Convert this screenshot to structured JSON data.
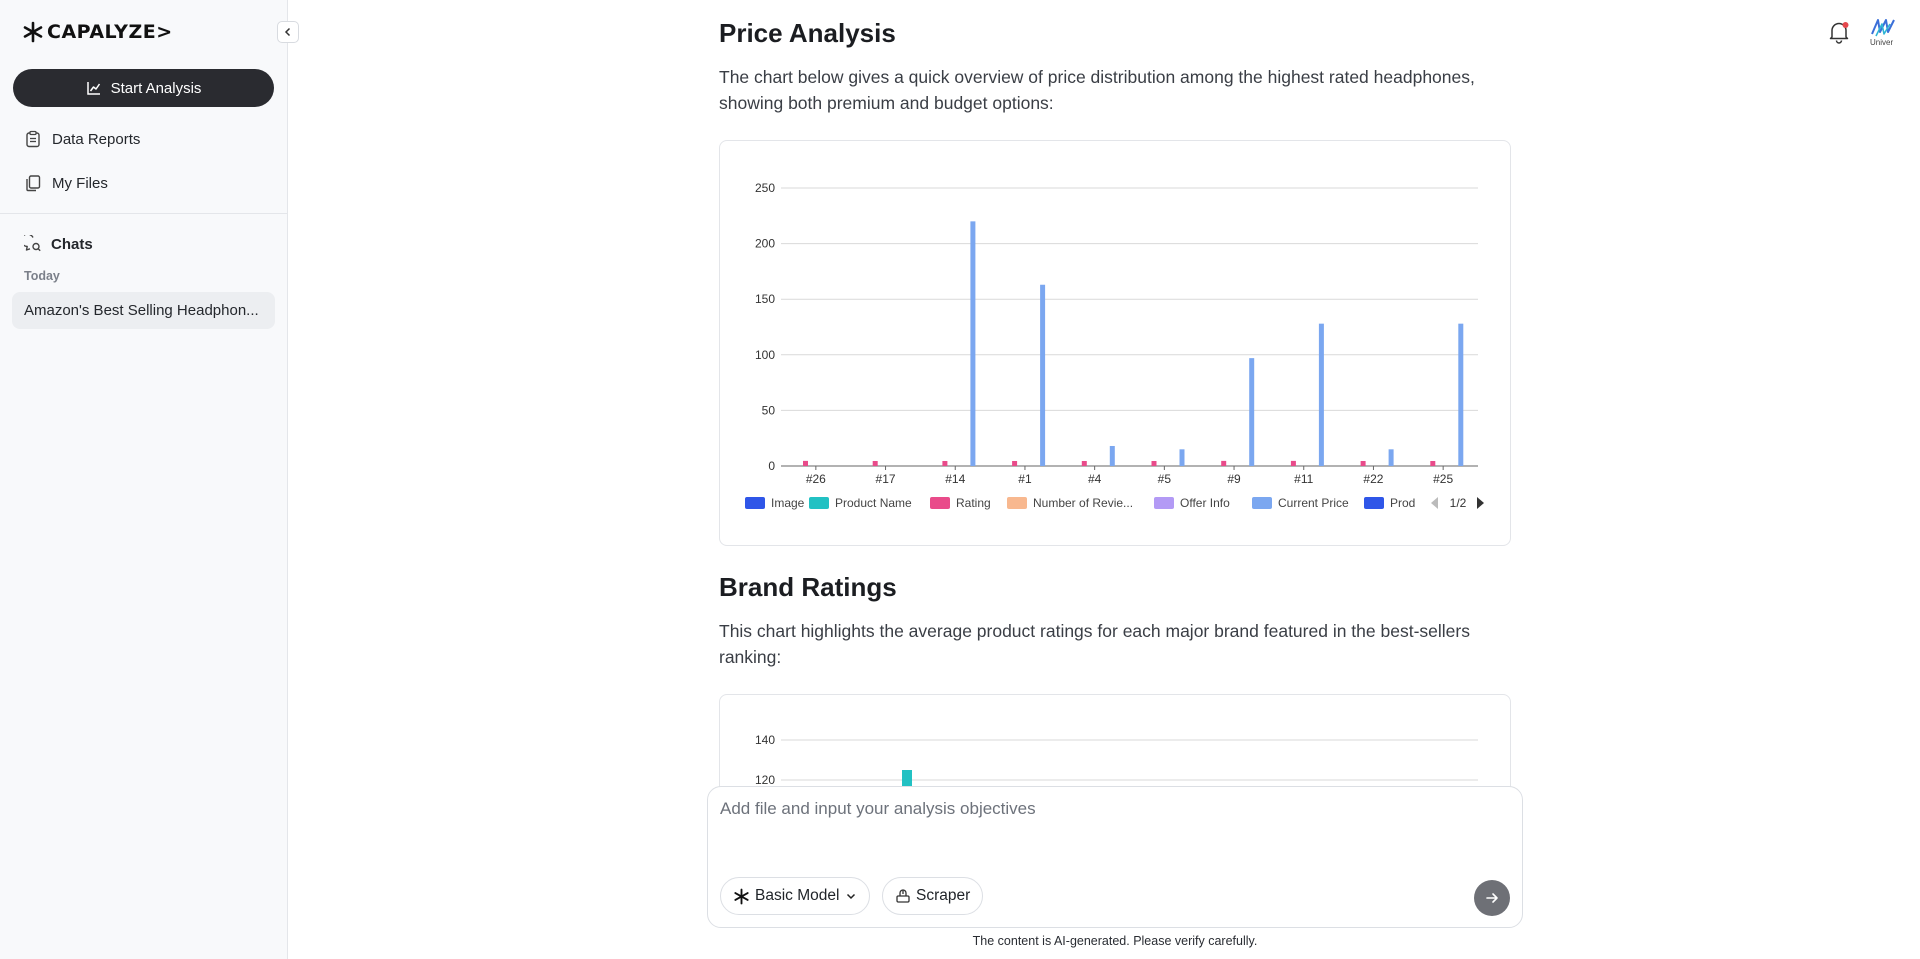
{
  "sidebar": {
    "logo_text": "CAPALYZE>",
    "start_button": "Start Analysis",
    "nav": [
      {
        "label": "Data Reports",
        "icon": "clipboard-icon"
      },
      {
        "label": "My Files",
        "icon": "files-icon"
      }
    ],
    "chats_heading": "Chats",
    "group_label": "Today",
    "chats": [
      "Amazon's Best Selling Headphon..."
    ]
  },
  "header": {
    "avatar_text": "Univer"
  },
  "main": {
    "section1": {
      "title": "Price Analysis",
      "description": "The chart below gives a quick overview of price distribution among the highest rated headphones, showing both premium and budget options:"
    },
    "section2": {
      "title": "Brand Ratings",
      "description": "This chart highlights the average product ratings for each major brand featured in the best-sellers ranking:"
    }
  },
  "composer": {
    "placeholder": "Add file and input your analysis objectives",
    "model_label": "Basic Model",
    "scraper_label": "Scraper",
    "disclaimer": "The content is AI-generated. Please verify carefully."
  },
  "colors": {
    "rating": "#e94b8a",
    "current_price": "#7ba7f0",
    "product_name": "#22c1c3",
    "accent_dark": "#2a2b30",
    "notification_dot": "#e5484d"
  },
  "chart_data": [
    {
      "type": "bar",
      "title": "",
      "xlabel": "",
      "ylabel": "",
      "ylim": [
        0,
        250
      ],
      "yticks": [
        0,
        50,
        100,
        150,
        200,
        250
      ],
      "grid": true,
      "categories": [
        "#26",
        "#17",
        "#14",
        "#1",
        "#4",
        "#5",
        "#9",
        "#11",
        "#22",
        "#25"
      ],
      "series": [
        {
          "name": "Rating",
          "color": "#e94b8a",
          "values": [
            4.6,
            4.5,
            4.5,
            4.5,
            4.5,
            4.5,
            4.6,
            4.6,
            4.5,
            4.5
          ]
        },
        {
          "name": "Current Price",
          "color": "#7ba7f0",
          "values": [
            0,
            0,
            220,
            163,
            18,
            15,
            97,
            128,
            15,
            128
          ]
        }
      ],
      "legend": {
        "position": "bottom",
        "items": [
          {
            "name": "Image",
            "color": "#2f56e8"
          },
          {
            "name": "Product Name",
            "color": "#22c1c3"
          },
          {
            "name": "Rating",
            "color": "#e94b8a"
          },
          {
            "name": "Number of Revie...",
            "color": "#f8b88f"
          },
          {
            "name": "Offer Info",
            "color": "#b39af5"
          },
          {
            "name": "Current Price",
            "color": "#7ba7f0"
          },
          {
            "name": "Prod",
            "color": "#2f56e8"
          }
        ],
        "page": "1/2"
      }
    },
    {
      "type": "bar",
      "title": "",
      "ylim": [
        0,
        140
      ],
      "yticks_visible": [
        120,
        140
      ],
      "grid": true,
      "series": [
        {
          "name": "Product Name",
          "color": "#22c1c3",
          "values": [
            125
          ]
        }
      ]
    }
  ]
}
